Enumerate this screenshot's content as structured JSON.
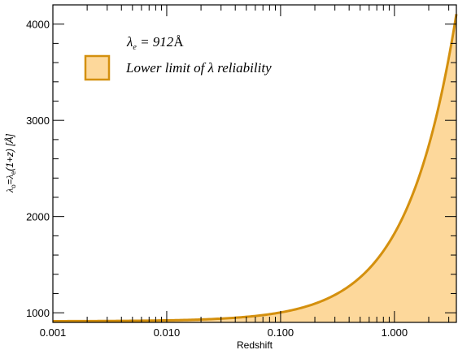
{
  "colors": {
    "curve": "#d4900e",
    "fill": "#fdd89b",
    "axis": "#000000",
    "background": "#ffffff"
  },
  "chart_data": {
    "type": "area",
    "title": "",
    "xlabel": "Redshift",
    "ylabel_parts": {
      "lambda": "λ",
      "sub_o": "o",
      "eq": "=",
      "sub_e": "e",
      "tail": "(1+z) [Å]"
    },
    "x_scale": "log",
    "xlim": [
      0.001,
      3.5
    ],
    "ylim": [
      900,
      4200
    ],
    "x_ticks": [
      0.001,
      0.01,
      0.1,
      1.0
    ],
    "x_tick_labels": [
      "0.001",
      "0.010",
      "0.100",
      "1.000"
    ],
    "y_ticks": [
      1000,
      2000,
      3000,
      4000
    ],
    "y_tick_labels": [
      "1000",
      "2000",
      "3000",
      "4000"
    ],
    "grid": false,
    "legend_position": "top-left",
    "legend": {
      "lambda_e_label": {
        "symbol": "λ",
        "sub": "e",
        "rest": " = 912",
        "unit": "Å"
      },
      "fill_label": "Lower limit of λ reliability"
    },
    "series": [
      {
        "lambda_e": 912,
        "formula": "lambda_o = lambda_e * (1 + z)",
        "x": [
          0.001,
          0.01,
          0.05,
          0.1,
          0.2,
          0.5,
          1.0,
          1.5,
          2.0,
          2.5,
          3.0,
          3.5
        ],
        "y": [
          913,
          921,
          958,
          1003,
          1094,
          1368,
          1824,
          2280,
          2736,
          3192,
          3648,
          4104
        ]
      }
    ]
  }
}
